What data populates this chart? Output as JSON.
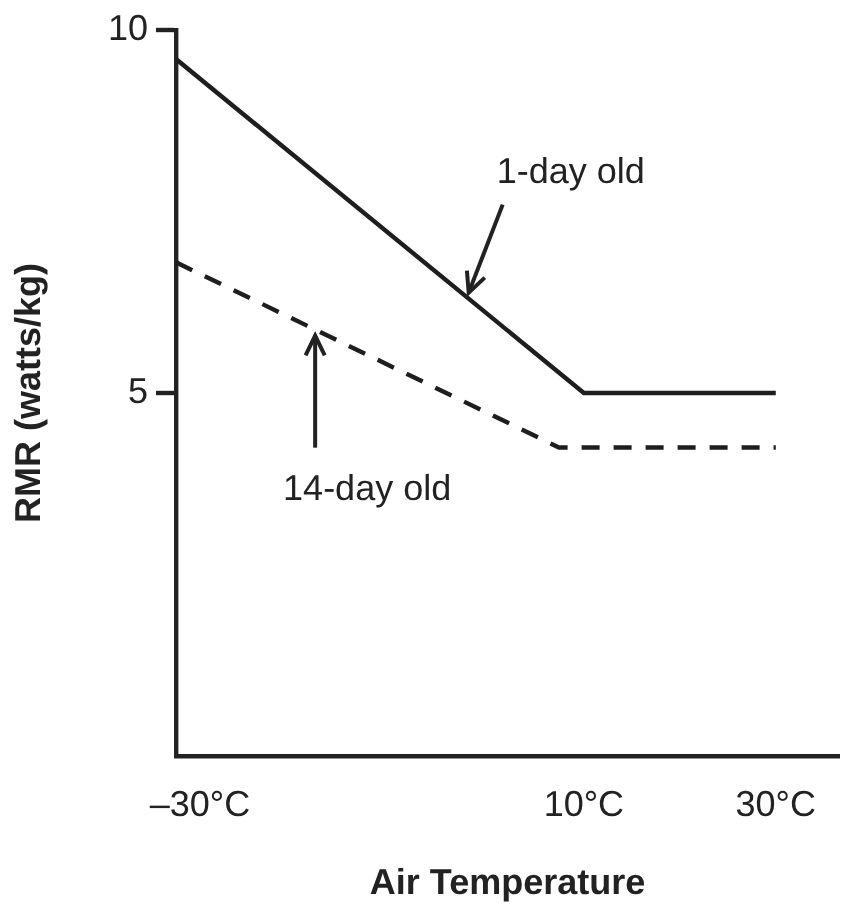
{
  "chart_data": {
    "type": "line",
    "xlabel": "Air Temperature",
    "ylabel": "RMR (watts/kg)",
    "xlim": [
      -32.5,
      36.6
    ],
    "xticks": [
      {
        "value": -30,
        "label": "–30°C"
      },
      {
        "value": 10,
        "label": "10°C"
      },
      {
        "value": 30,
        "label": "30°C"
      }
    ],
    "ylim": [
      0,
      10
    ],
    "yticks": [
      5,
      10
    ],
    "series": [
      {
        "color": "#1e1e1e",
        "x": [
          -32.5,
          10,
          30
        ],
        "values": [
          9.6,
          5.0,
          5.0
        ],
        "line_style": "solid"
      },
      {
        "color": "#1e1e1e",
        "x": [
          -32.5,
          7.4,
          30
        ],
        "values": [
          6.8,
          4.25,
          4.25
        ],
        "line_style": "dashed"
      }
    ],
    "annotations": [
      {
        "text": "1-day old",
        "x": -2,
        "y": 6.3
      },
      {
        "text": "14-day old",
        "x": -18,
        "y": 5.9
      }
    ],
    "grid": false,
    "legend": false,
    "marker": "none"
  }
}
